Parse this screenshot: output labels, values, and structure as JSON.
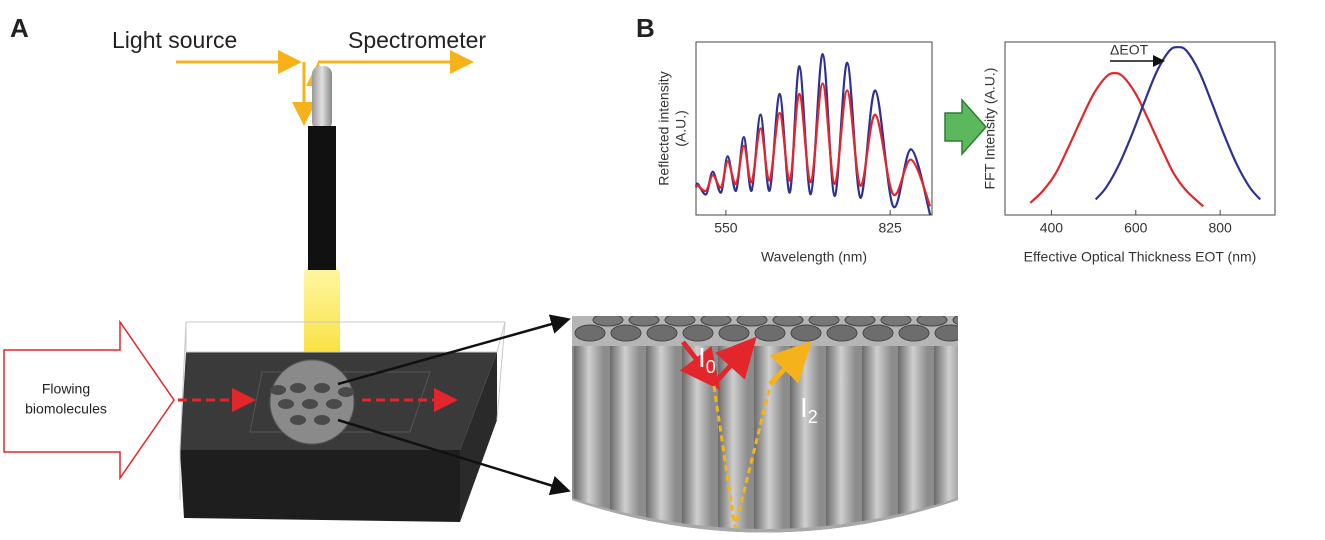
{
  "diagram": {
    "panel_a": "A",
    "panel_b": "B",
    "light_source": "Light source",
    "spectrometer": "Spectrometer",
    "flowing": [
      "Flowing",
      "biomolecules"
    ],
    "i0": {
      "letter": "I",
      "sub": "0"
    },
    "i2": {
      "letter": "I",
      "sub": "2"
    }
  },
  "chart_data": [
    {
      "type": "line",
      "xlabel": "Wavelength (nm)",
      "ylabel": [
        "Reflected intensity",
        "(A.U.)"
      ],
      "xlim": [
        500,
        895
      ],
      "xticks": [
        550,
        825
      ],
      "ylim": [
        0,
        1
      ],
      "x": [
        500,
        503,
        517,
        528,
        542,
        553,
        567,
        580,
        593,
        608,
        623,
        640,
        657,
        673,
        692,
        712,
        732,
        753,
        775,
        800,
        830,
        860,
        892
      ],
      "series": [
        {
          "color": "#2e3192",
          "values": [
            0.16,
            0.18,
            0.12,
            0.25,
            0.13,
            0.34,
            0.14,
            0.45,
            0.14,
            0.58,
            0.14,
            0.7,
            0.13,
            0.86,
            0.12,
            0.93,
            0.11,
            0.88,
            0.1,
            0.72,
            0.05,
            0.38,
            0.0
          ]
        },
        {
          "color": "#e3262b",
          "values": [
            0.16,
            0.17,
            0.14,
            0.23,
            0.16,
            0.31,
            0.18,
            0.4,
            0.19,
            0.5,
            0.2,
            0.59,
            0.2,
            0.7,
            0.19,
            0.76,
            0.18,
            0.72,
            0.17,
            0.58,
            0.12,
            0.32,
            0.05
          ]
        }
      ]
    },
    {
      "type": "line",
      "xlabel": "Effective Optical Thickness EOT (nm)",
      "ylabel": [
        "FFT Intensity (A.U.)"
      ],
      "annotation": "ΔEOT",
      "xlim": [
        290,
        930
      ],
      "xticks": [
        400,
        600,
        800
      ],
      "ylim": [
        0,
        1
      ],
      "series": [
        {
          "color": "#e3262b",
          "x": [
            350,
            380,
            410,
            440,
            470,
            500,
            530,
            550,
            570,
            600,
            630,
            660,
            690,
            720,
            760
          ],
          "values": [
            0.07,
            0.14,
            0.24,
            0.39,
            0.55,
            0.7,
            0.8,
            0.82,
            0.8,
            0.7,
            0.55,
            0.39,
            0.24,
            0.14,
            0.05
          ]
        },
        {
          "color": "#2e3192",
          "x": [
            505,
            530,
            560,
            590,
            620,
            650,
            680,
            700,
            720,
            750,
            780,
            810,
            840,
            870,
            895
          ],
          "values": [
            0.09,
            0.16,
            0.29,
            0.46,
            0.65,
            0.83,
            0.95,
            0.97,
            0.95,
            0.83,
            0.65,
            0.46,
            0.29,
            0.16,
            0.09
          ]
        }
      ]
    }
  ]
}
